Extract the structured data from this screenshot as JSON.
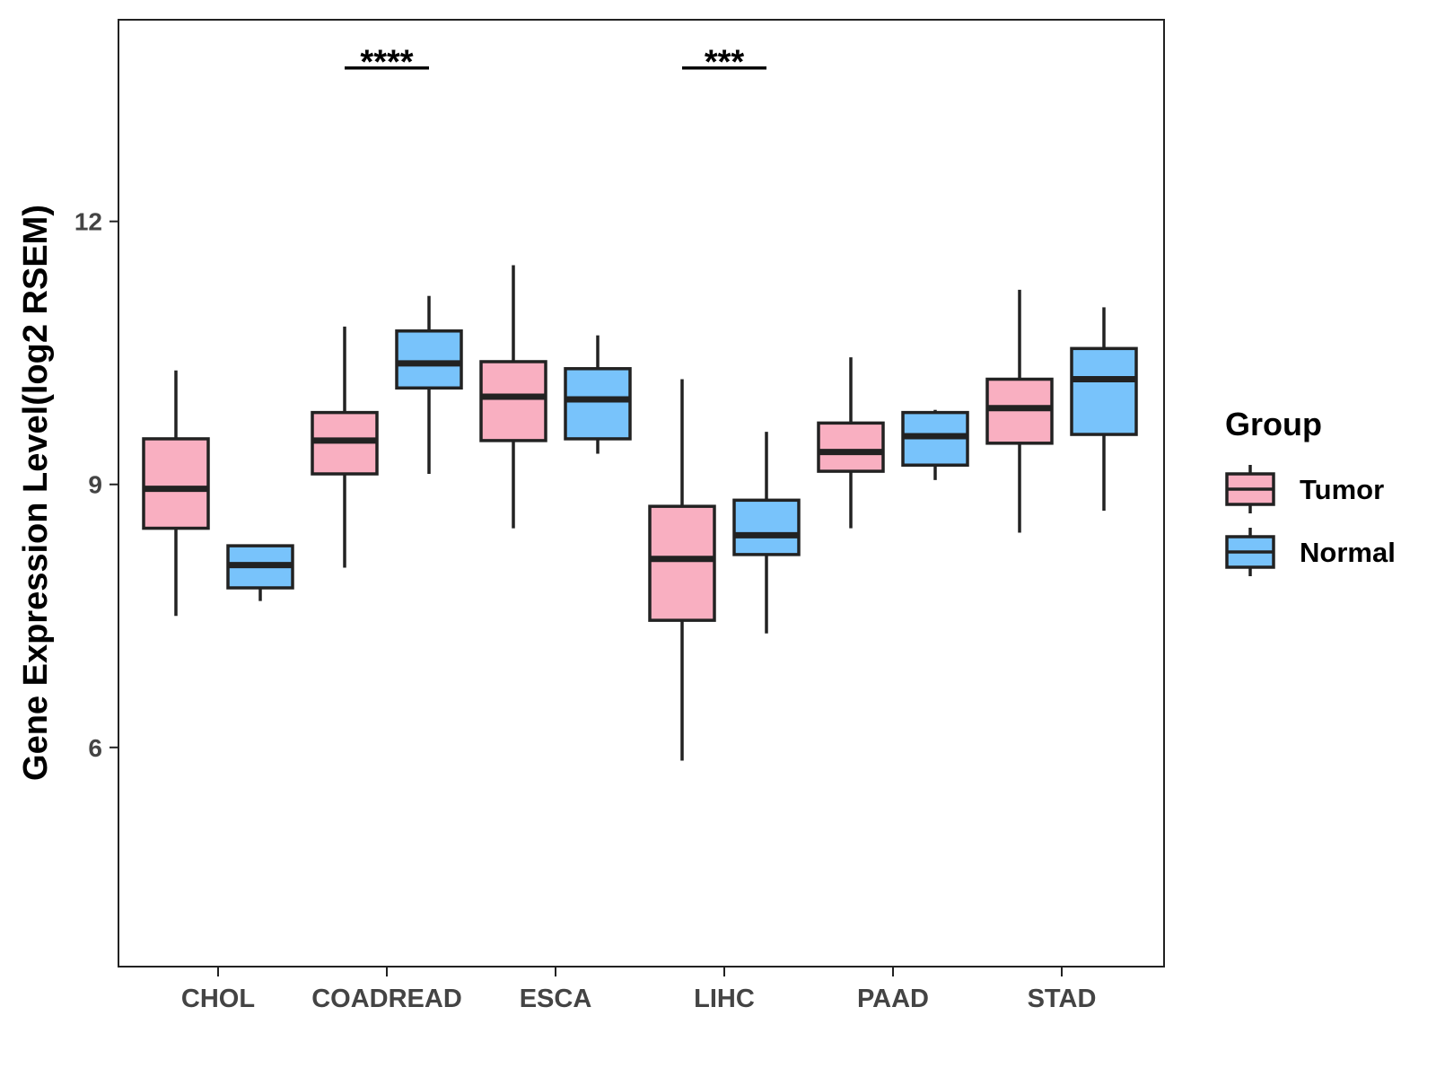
{
  "chart_data": {
    "type": "box",
    "ylabel": "Gene Expression Level(log2 RSEM)",
    "xlabel": "",
    "ylim": [
      3.5,
      14.3
    ],
    "yticks": [
      6,
      9,
      12
    ],
    "categories": [
      "CHOL",
      "COADREAD",
      "ESCA",
      "LIHC",
      "PAAD",
      "STAD"
    ],
    "legend": {
      "title": "Group",
      "position": "right"
    },
    "series": [
      {
        "name": "Tumor",
        "color": "#F9AFC1",
        "boxes": [
          {
            "min": 7.5,
            "q1": 8.5,
            "median": 8.95,
            "q3": 9.52,
            "max": 10.3
          },
          {
            "min": 8.05,
            "q1": 9.12,
            "median": 9.5,
            "q3": 9.82,
            "max": 10.8
          },
          {
            "min": 8.5,
            "q1": 9.5,
            "median": 10.0,
            "q3": 10.4,
            "max": 11.5
          },
          {
            "min": 5.85,
            "q1": 7.45,
            "median": 8.15,
            "q3": 8.75,
            "max": 10.2
          },
          {
            "min": 8.5,
            "q1": 9.15,
            "median": 9.37,
            "q3": 9.7,
            "max": 10.45
          },
          {
            "min": 8.45,
            "q1": 9.47,
            "median": 9.87,
            "q3": 10.2,
            "max": 11.22
          }
        ]
      },
      {
        "name": "Normal",
        "color": "#78C3FB",
        "boxes": [
          {
            "min": 7.67,
            "q1": 7.82,
            "median": 8.08,
            "q3": 8.3,
            "max": 8.3
          },
          {
            "min": 9.12,
            "q1": 10.1,
            "median": 10.38,
            "q3": 10.75,
            "max": 11.15
          },
          {
            "min": 9.35,
            "q1": 9.52,
            "median": 9.97,
            "q3": 10.32,
            "max": 10.7
          },
          {
            "min": 7.3,
            "q1": 8.2,
            "median": 8.42,
            "q3": 8.82,
            "max": 9.6
          },
          {
            "min": 9.05,
            "q1": 9.22,
            "median": 9.55,
            "q3": 9.82,
            "max": 9.85
          },
          {
            "min": 8.7,
            "q1": 9.57,
            "median": 10.2,
            "q3": 10.55,
            "max": 11.02
          }
        ]
      }
    ],
    "annotations": [
      {
        "category": "COADREAD",
        "label": "****",
        "y": 13.75
      },
      {
        "category": "LIHC",
        "label": "***",
        "y": 13.75
      }
    ]
  }
}
